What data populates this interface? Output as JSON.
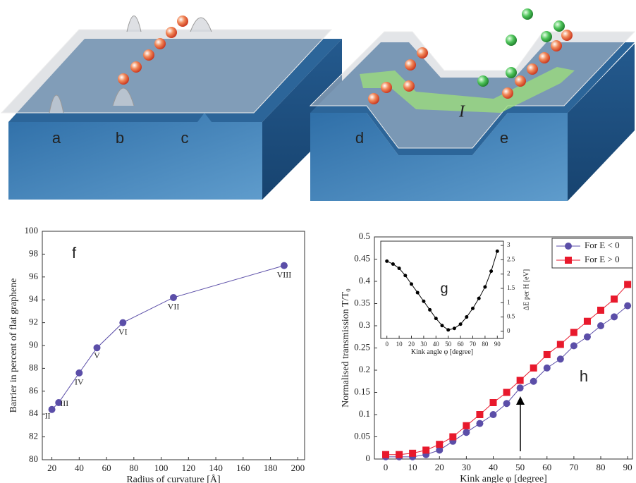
{
  "illustration": {
    "labels": [
      "a",
      "b",
      "c",
      "d",
      "e"
    ],
    "current_label": "I"
  },
  "chart_data": [
    {
      "type": "line",
      "panel_label": "f",
      "xlabel": "Radius of curvature [Å]",
      "ylabel": "Barrier in percent of flat graphene",
      "x": [
        20,
        25,
        40,
        53,
        72,
        109,
        190
      ],
      "series": [
        {
          "color": "#5b4ea8",
          "marker": "circle",
          "values": [
            84.4,
            85.0,
            87.6,
            89.8,
            92.0,
            94.2,
            97.0
          ]
        }
      ],
      "point_labels": [
        "II",
        "III",
        "IV",
        "V",
        "VI",
        "VII",
        "VIII"
      ],
      "xlim": [
        13,
        205
      ],
      "xticks": [
        20,
        40,
        60,
        80,
        100,
        120,
        140,
        160,
        180,
        200
      ],
      "ylim": [
        80,
        100
      ],
      "yticks": [
        80,
        82,
        84,
        86,
        88,
        90,
        92,
        94,
        96,
        98,
        100
      ]
    },
    {
      "type": "line",
      "panel_label": "h",
      "xlabel": "Kink angle φ [degree]",
      "ylabel": "Normalised transmission T/T₀",
      "x": [
        0,
        5,
        10,
        15,
        20,
        25,
        30,
        35,
        40,
        45,
        50,
        55,
        60,
        65,
        70,
        75,
        80,
        85,
        90
      ],
      "series": [
        {
          "name": "For E < 0",
          "color": "#5b4ea8",
          "marker": "circle",
          "values": [
            0.005,
            0.005,
            0.005,
            0.01,
            0.02,
            0.04,
            0.06,
            0.08,
            0.1,
            0.125,
            0.16,
            0.175,
            0.205,
            0.225,
            0.255,
            0.275,
            0.3,
            0.32,
            0.345
          ]
        },
        {
          "name": "For E > 0",
          "color": "#e8192c",
          "marker": "square",
          "values": [
            0.01,
            0.01,
            0.013,
            0.02,
            0.033,
            0.05,
            0.075,
            0.1,
            0.127,
            0.15,
            0.177,
            0.205,
            0.235,
            0.258,
            0.285,
            0.31,
            0.335,
            0.36,
            0.393
          ]
        }
      ],
      "legend": "upper right",
      "xlim": [
        -4.2,
        91.8
      ],
      "xticks": [
        0,
        10,
        20,
        30,
        40,
        50,
        60,
        70,
        80,
        90
      ],
      "ylim": [
        0,
        0.5
      ],
      "yticks": [
        0,
        0.05,
        0.1,
        0.15,
        0.2,
        0.25,
        0.3,
        0.35,
        0.4,
        0.45,
        0.5
      ]
    },
    {
      "type": "line",
      "panel_label": "g",
      "xlabel": "Kink angle φ [degree]",
      "ylabel": "ΔE per H [eV]",
      "y_axis_position": "right",
      "x": [
        0,
        5,
        10,
        15,
        20,
        25,
        30,
        35,
        40,
        45,
        50,
        55,
        60,
        65,
        70,
        75,
        80,
        85,
        90
      ],
      "series": [
        {
          "color": "#000000",
          "marker": "dot",
          "values": [
            2.45,
            2.35,
            2.2,
            1.95,
            1.65,
            1.35,
            1.05,
            0.75,
            0.45,
            0.2,
            0.05,
            0.1,
            0.25,
            0.5,
            0.8,
            1.15,
            1.55,
            2.1,
            2.8
          ]
        }
      ],
      "xlim": [
        -5,
        95
      ],
      "xticks": [
        0,
        10,
        20,
        30,
        40,
        50,
        60,
        70,
        80,
        90
      ],
      "ylim": [
        -0.25,
        3.15
      ],
      "yticks": [
        0,
        0.5,
        1,
        1.5,
        2,
        2.5,
        3
      ]
    }
  ]
}
